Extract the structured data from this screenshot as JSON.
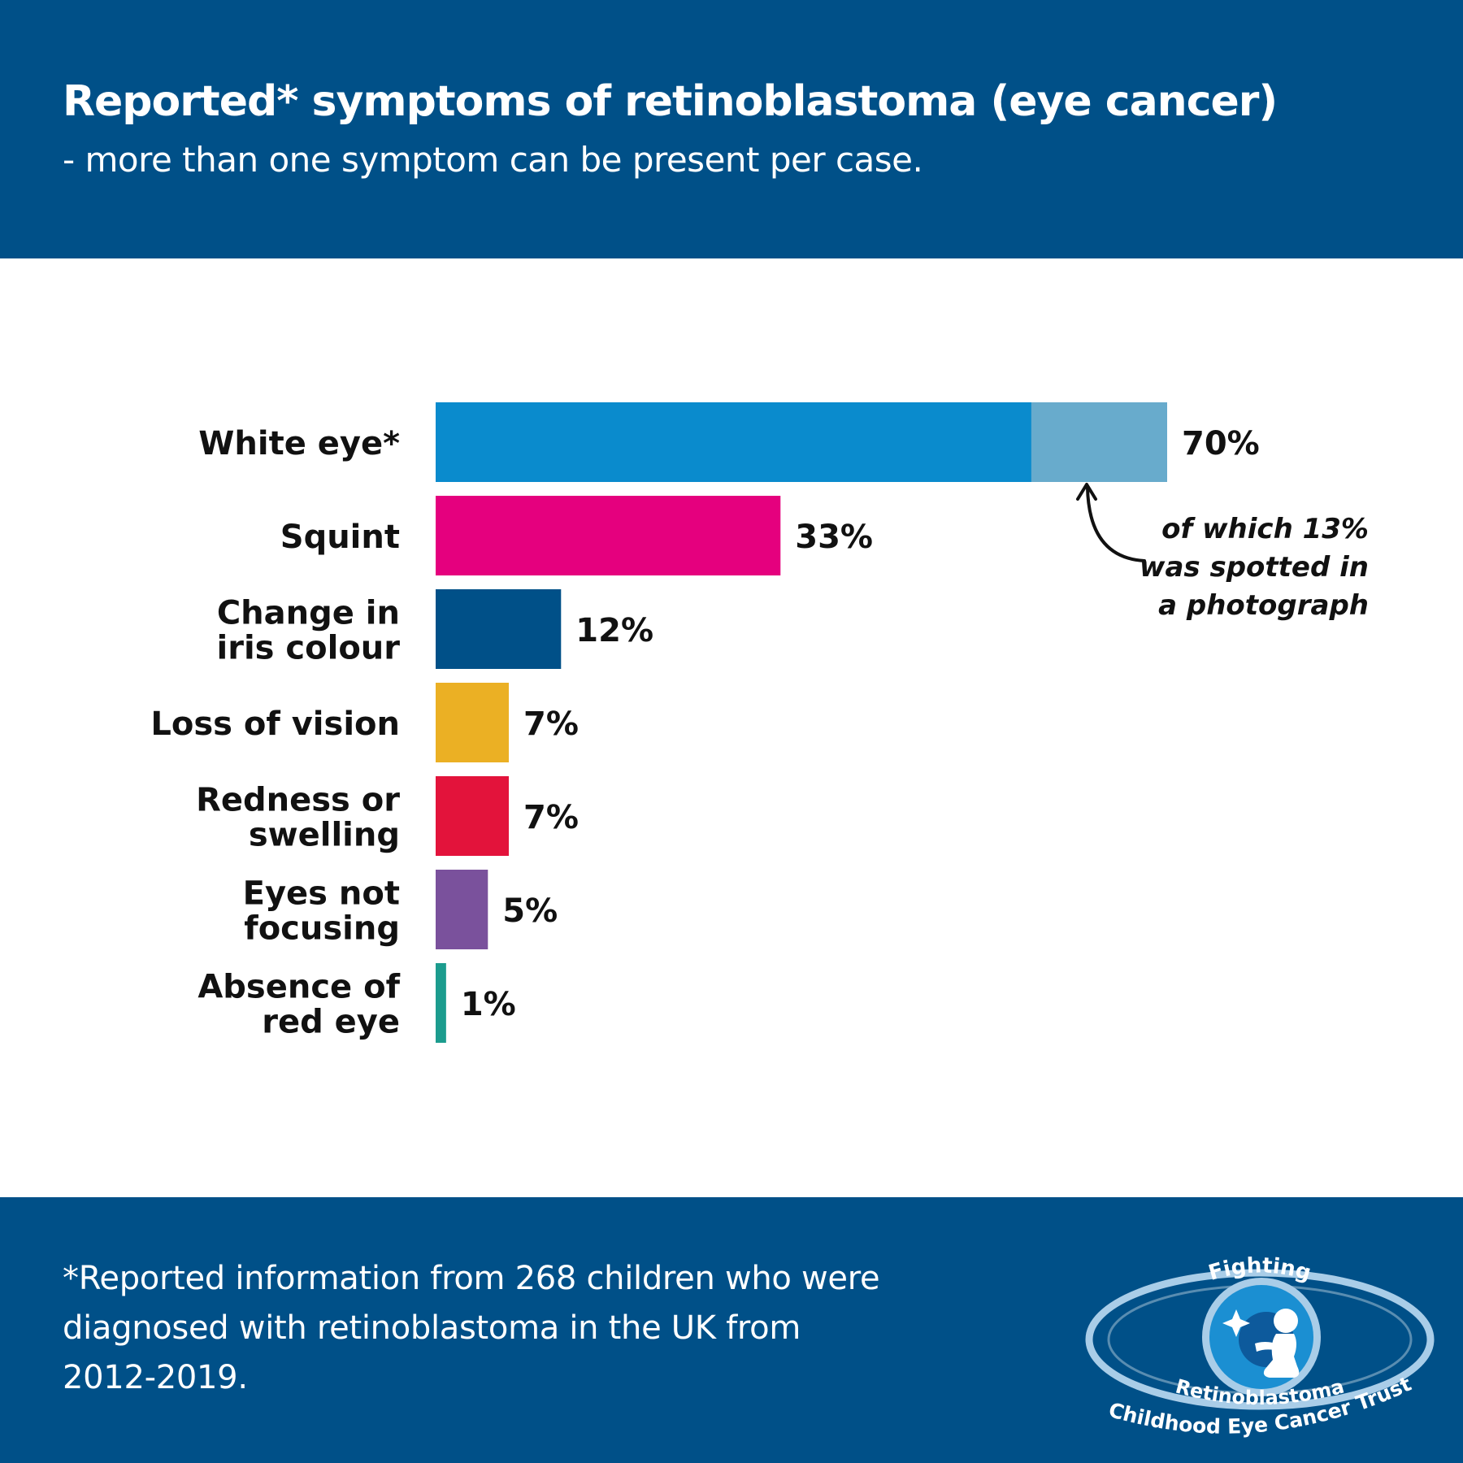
{
  "header": {
    "title": "Reported* symptoms of retinoblastoma (eye cancer)",
    "subtitle": "- more than one symptom can be present per case."
  },
  "chart_data": {
    "type": "bar",
    "orientation": "horizontal",
    "categories": [
      [
        "White eye*"
      ],
      [
        "Squint"
      ],
      [
        "Change in",
        "iris colour"
      ],
      [
        "Loss of vision"
      ],
      [
        "Redness or",
        "swelling"
      ],
      [
        "Eyes not",
        "focusing"
      ],
      [
        "Absence of",
        "red eye"
      ]
    ],
    "values": [
      70,
      33,
      12,
      7,
      7,
      5,
      1
    ],
    "value_labels": [
      "70%",
      "33%",
      "12%",
      "7%",
      "7%",
      "5%",
      "1%"
    ],
    "colors": [
      "#0a8bcd",
      "#e5007e",
      "#005088",
      "#ebb024",
      "#e3133b",
      "#7a519c",
      "#1c9c8e"
    ],
    "highlight": {
      "category_index": 0,
      "value": 13,
      "color": "#68abcc"
    },
    "annotation": [
      "of which 13%",
      "was spotted in",
      "a photograph"
    ],
    "xlim": [
      0,
      70
    ],
    "grid": false,
    "legend": "none"
  },
  "footer": {
    "footnote": "*Reported information from 268 children  who were diagnosed with retinoblastoma in the UK from 2012-2019."
  },
  "logo": {
    "top_text": "Fighting",
    "name": "Retinoblastoma",
    "tagline": "Childhood Eye Cancer Trust",
    "colors": {
      "ring": "#a9cde8",
      "iris": "#1b8fd2",
      "pupil": "#0d5a9c"
    }
  }
}
